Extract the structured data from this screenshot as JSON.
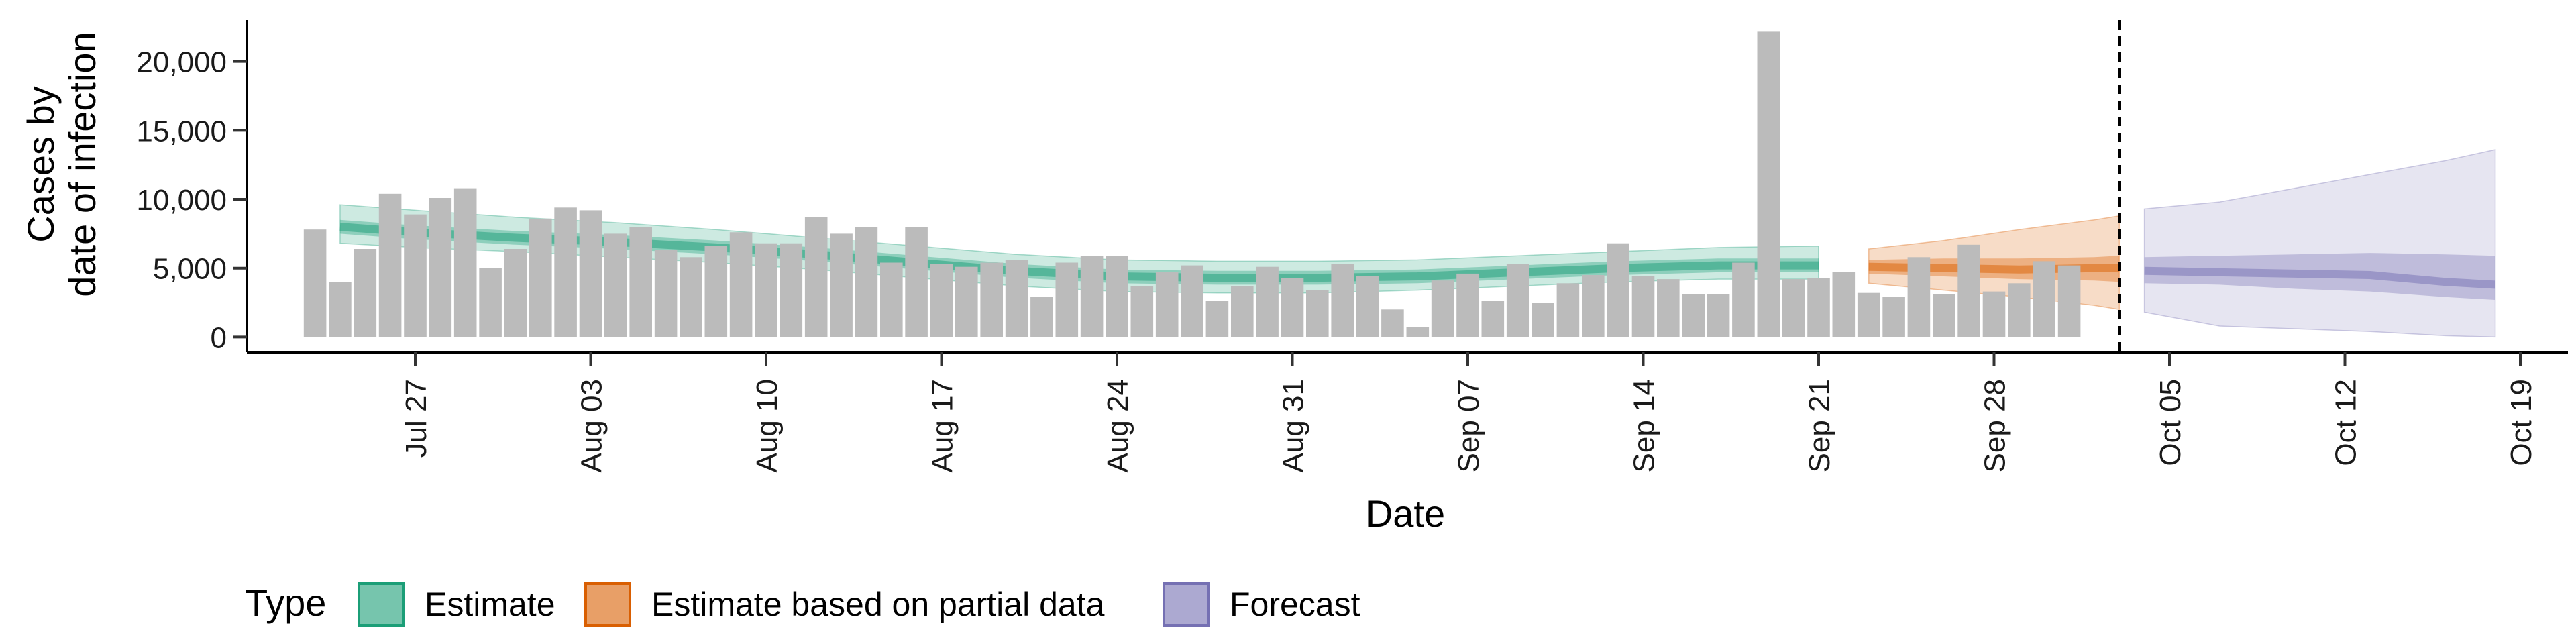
{
  "chart_data": {
    "type": "bar",
    "title": "",
    "xlabel": "Date",
    "ylabel_lines": [
      "Cases by",
      "date of infection"
    ],
    "x_start": "2020-07-23",
    "x_range": [
      "2020-07-21",
      "2020-10-20"
    ],
    "ylim": [
      -1100,
      23000
    ],
    "x_ticks": [
      "Jul 27",
      "Aug 03",
      "Aug 10",
      "Aug 17",
      "Aug 24",
      "Aug 31",
      "Sep 07",
      "Sep 14",
      "Sep 21",
      "Sep 28",
      "Oct 05",
      "Oct 12",
      "Oct 19"
    ],
    "x_tick_dates": [
      "2020-07-27",
      "2020-08-03",
      "2020-08-10",
      "2020-08-17",
      "2020-08-24",
      "2020-08-31",
      "2020-09-07",
      "2020-09-14",
      "2020-09-21",
      "2020-09-28",
      "2020-10-05",
      "2020-10-12",
      "2020-10-19"
    ],
    "y_ticks": [
      0,
      5000,
      10000,
      15000,
      20000
    ],
    "y_tick_labels": [
      "0",
      "5,000",
      "10,000",
      "15,000",
      "20,000"
    ],
    "forecast_date": "2020-10-03",
    "reported_cases": [
      7800,
      4000,
      6400,
      10400,
      8900,
      10100,
      10800,
      5000,
      6400,
      8600,
      9400,
      9200,
      7500,
      8000,
      6300,
      5800,
      6600,
      7600,
      6800,
      6800,
      8700,
      7500,
      8000,
      5400,
      8000,
      5300,
      5100,
      5400,
      5600,
      2900,
      5400,
      5900,
      5900,
      3700,
      4700,
      5200,
      2600,
      3700,
      5100,
      4300,
      3400,
      5300,
      4400,
      2000,
      700,
      4100,
      4600,
      2600,
      5300,
      2500,
      3900,
      4500,
      6800,
      4400,
      4200,
      3100,
      3100,
      5400,
      22200,
      4200,
      4300,
      4700,
      3200,
      2900,
      5800,
      3100,
      6700,
      3300,
      3900,
      5500,
      5200
    ],
    "series": [
      {
        "name": "Estimate",
        "color": "#1B9E77",
        "dates": [
          "2020-07-24",
          "2020-07-27",
          "2020-07-31",
          "2020-08-04",
          "2020-08-08",
          "2020-08-12",
          "2020-08-16",
          "2020-08-20",
          "2020-08-24",
          "2020-08-28",
          "2020-09-01",
          "2020-09-05",
          "2020-09-09",
          "2020-09-13",
          "2020-09-17",
          "2020-09-21"
        ],
        "median": [
          8000,
          7600,
          7200,
          6900,
          6500,
          6000,
          5400,
          4800,
          4400,
          4300,
          4300,
          4400,
          4700,
          5000,
          5200,
          5200
        ],
        "lower_50": [
          7500,
          7100,
          6700,
          6400,
          6000,
          5500,
          4900,
          4300,
          3900,
          3800,
          3800,
          3900,
          4200,
          4500,
          4700,
          4700
        ],
        "upper_50": [
          8500,
          8100,
          7700,
          7400,
          7000,
          6500,
          5900,
          5300,
          4900,
          4800,
          4800,
          4900,
          5200,
          5500,
          5700,
          5700
        ],
        "lower_90": [
          6800,
          6500,
          6200,
          5800,
          5400,
          4900,
          4300,
          3700,
          3300,
          3200,
          3200,
          3400,
          3700,
          4000,
          4200,
          4200
        ],
        "upper_90": [
          9600,
          9200,
          8700,
          8300,
          7800,
          7200,
          6600,
          6000,
          5600,
          5500,
          5500,
          5600,
          5900,
          6200,
          6500,
          6600
        ]
      },
      {
        "name": "Estimate based on partial data",
        "color": "#D95F02",
        "dates": [
          "2020-09-23",
          "2020-09-26",
          "2020-09-29",
          "2020-10-02",
          "2020-10-03"
        ],
        "median": [
          5100,
          5000,
          4900,
          5000,
          5000
        ],
        "lower_50": [
          4600,
          4400,
          4200,
          4100,
          4000
        ],
        "upper_50": [
          5600,
          5700,
          5700,
          5800,
          5900
        ],
        "lower_90": [
          3900,
          3400,
          2900,
          2300,
          2000
        ],
        "upper_90": [
          6400,
          7000,
          7800,
          8500,
          8800
        ]
      },
      {
        "name": "Forecast",
        "color": "#7570B3",
        "dates": [
          "2020-10-04",
          "2020-10-07",
          "2020-10-10",
          "2020-10-13",
          "2020-10-16",
          "2020-10-18"
        ],
        "median": [
          4800,
          4700,
          4600,
          4500,
          4000,
          3800
        ],
        "lower_50": [
          3900,
          3800,
          3500,
          3300,
          2900,
          2700
        ],
        "upper_50": [
          5800,
          5900,
          6000,
          6100,
          6000,
          5900
        ],
        "lower_90": [
          1800,
          800,
          600,
          400,
          100,
          0
        ],
        "upper_90": [
          9300,
          9800,
          10800,
          11800,
          12800,
          13600
        ]
      }
    ],
    "legend": {
      "title": "Type",
      "position": "bottom-left",
      "items": [
        "Estimate",
        "Estimate based on partial data",
        "Forecast"
      ]
    },
    "grid": false,
    "bar_color": "#BBBBBB"
  }
}
